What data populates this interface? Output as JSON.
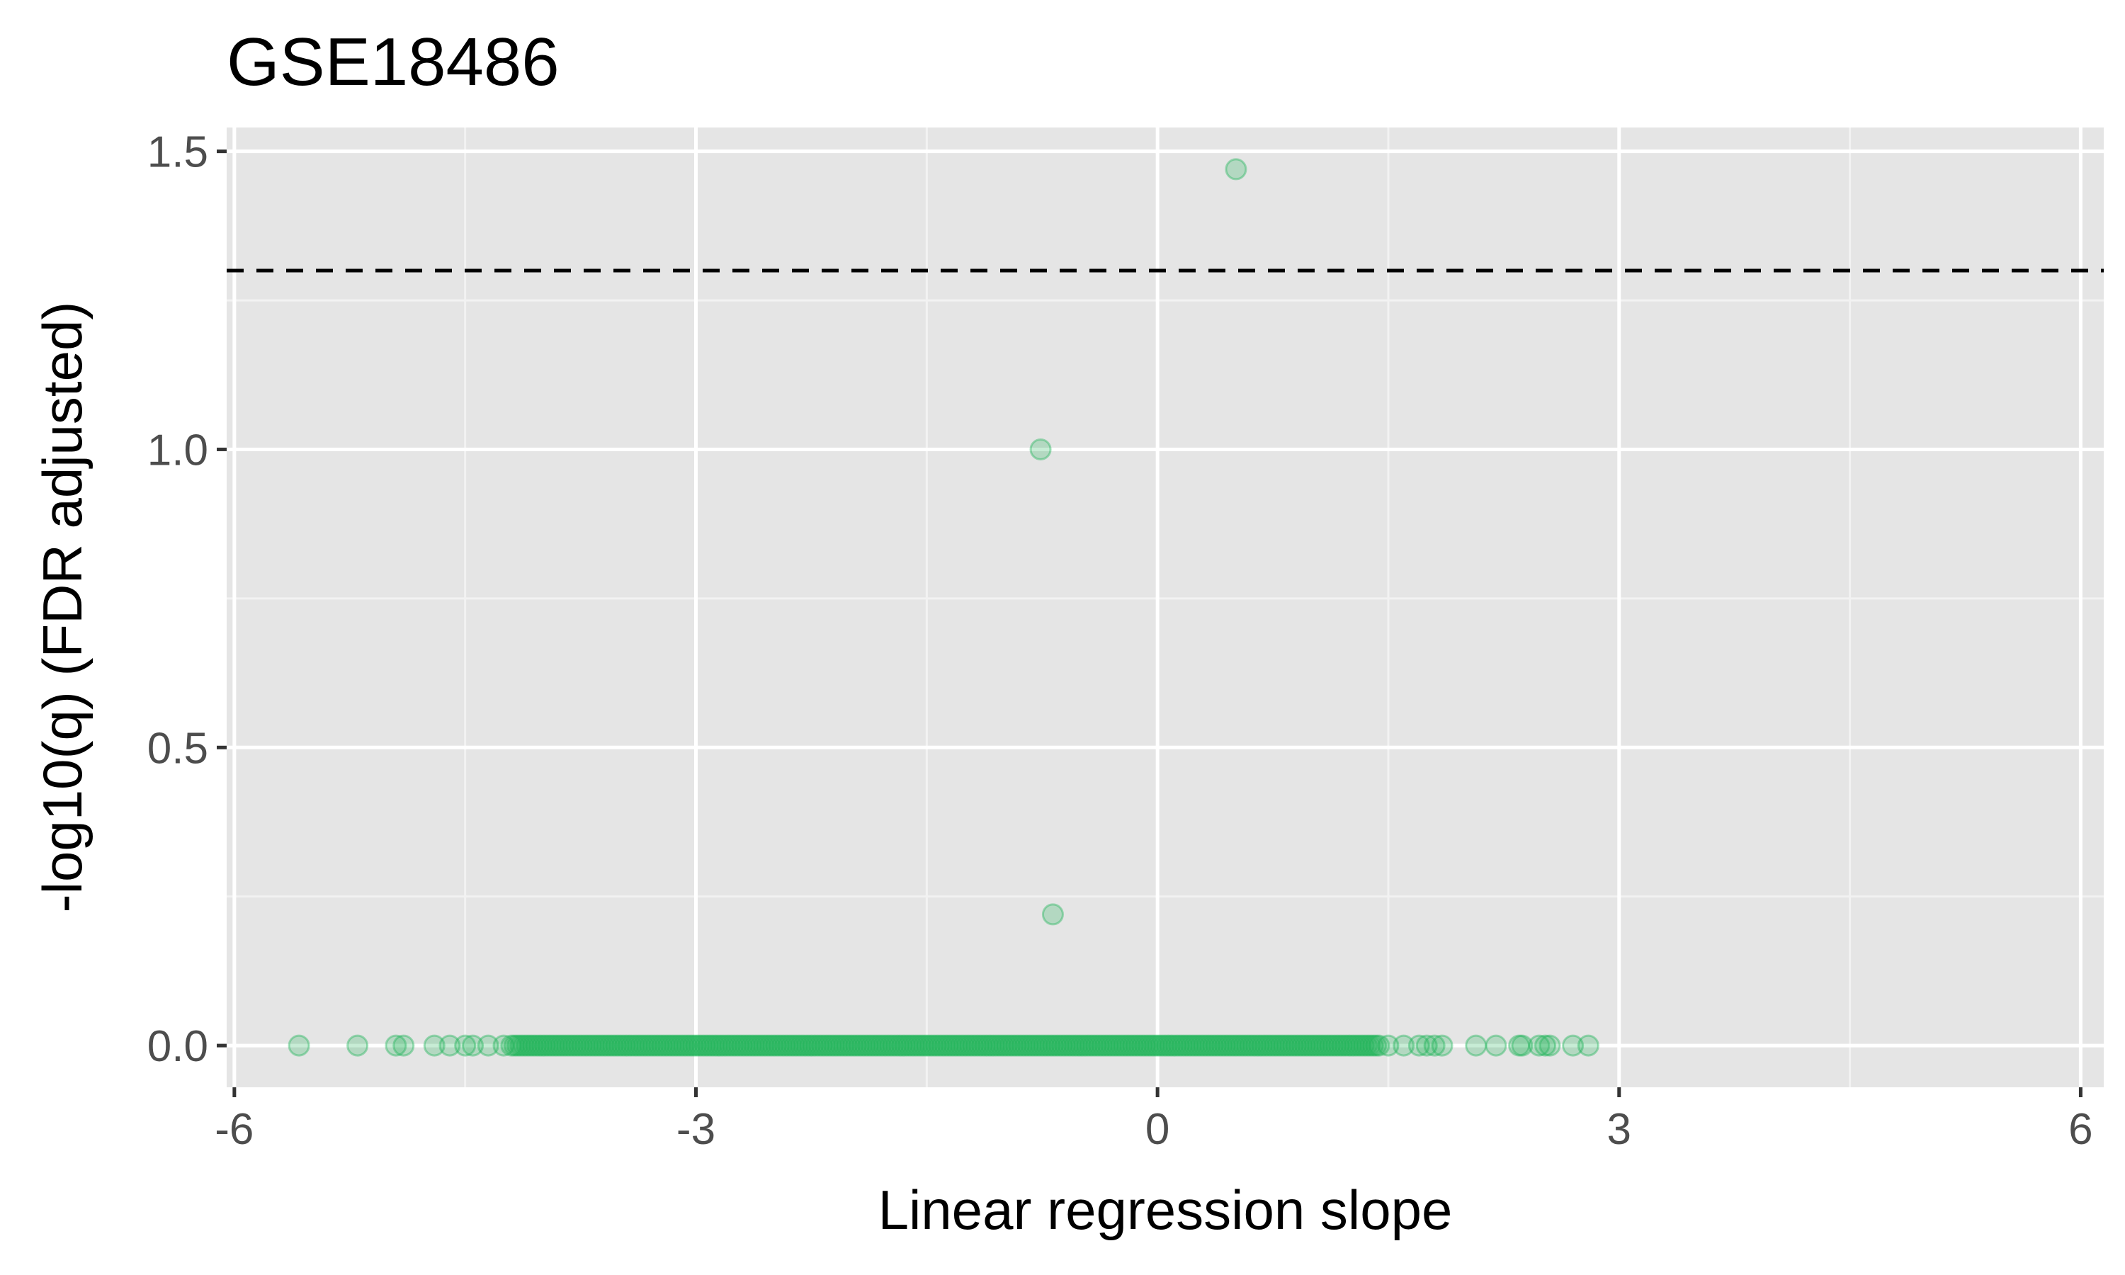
{
  "chart_data": {
    "type": "scatter",
    "title": "GSE18486",
    "xlabel": "Linear regression slope",
    "ylabel": "-log10(q) (FDR adjusted)",
    "xlim": [
      -6.05,
      6.15
    ],
    "ylim": [
      -0.07,
      1.54
    ],
    "x_ticks": [
      -6,
      -3,
      0,
      3,
      6
    ],
    "x_tick_labels": [
      "-6",
      "-3",
      "0",
      "3",
      "6"
    ],
    "y_ticks": [
      0.0,
      0.5,
      1.0,
      1.5
    ],
    "y_tick_labels": [
      "0.0",
      "0.5",
      "1.0",
      "1.5"
    ],
    "threshold_line": {
      "y": 1.3,
      "style": "dashed",
      "color": "#000000"
    },
    "grid": true,
    "panel_background": "#e5e5e5",
    "point_color": "#1fb558",
    "point_alpha": 0.25,
    "points": [
      {
        "x": 0.51,
        "y": 1.47
      },
      {
        "x": -0.76,
        "y": 1.0
      },
      {
        "x": -0.68,
        "y": 0.22
      }
    ],
    "baseline_points": {
      "y": 0,
      "x_outliers": [
        -5.58,
        -5.2,
        -4.95,
        -4.9,
        -4.7,
        -4.6,
        -4.5,
        -4.45,
        -4.35,
        -4.25,
        1.5,
        1.6,
        1.7,
        1.75,
        1.8,
        1.85,
        2.07,
        2.2,
        2.35,
        2.37,
        2.48,
        2.52,
        2.55,
        2.7,
        2.8
      ],
      "dense_range": [
        -4.2,
        1.45
      ]
    }
  }
}
